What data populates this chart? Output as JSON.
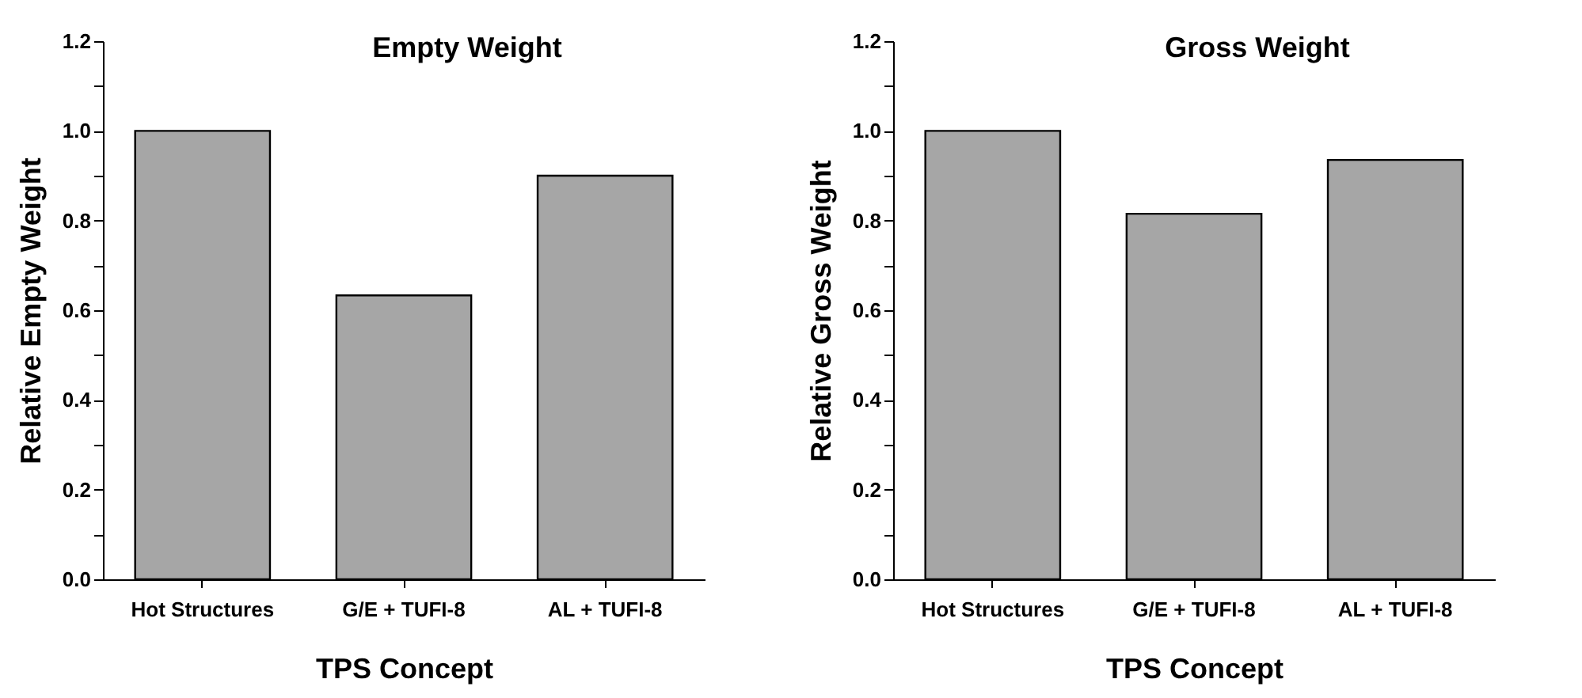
{
  "chart_data": [
    {
      "type": "bar",
      "title": "Empty Weight",
      "xlabel": "TPS Concept",
      "ylabel": "Relative Empty Weight",
      "categories": [
        "Hot Structures",
        "G/E + TUFI-8",
        "AL + TUFI-8"
      ],
      "values": [
        1.0,
        0.633,
        0.9
      ],
      "color": "#a6a6a6",
      "ylim": [
        0,
        1.2
      ],
      "yticks": [
        {
          "value": 0,
          "label": "0.0"
        },
        {
          "value": 0.1,
          "label": null
        },
        {
          "value": 0.2,
          "label": "0.2"
        },
        {
          "value": 0.3,
          "label": null
        },
        {
          "value": 0.4,
          "label": "0.4"
        },
        {
          "value": 0.5,
          "label": null
        },
        {
          "value": 0.6,
          "label": "0.6"
        },
        {
          "value": 0.7,
          "label": null
        },
        {
          "value": 0.8,
          "label": "0.8"
        },
        {
          "value": 0.9,
          "label": null
        },
        {
          "value": 1.0,
          "label": "1.0"
        },
        {
          "value": 1.1,
          "label": null
        },
        {
          "value": 1.2,
          "label": "1.2"
        }
      ],
      "grid": false
    },
    {
      "type": "bar",
      "title": "Gross Weight",
      "xlabel": "TPS Concept",
      "ylabel": "Relative Gross Weight",
      "categories": [
        "Hot Structures",
        "G/E + TUFI-8",
        "AL + TUFI-8"
      ],
      "values": [
        1.0,
        0.815,
        0.935
      ],
      "color": "#a6a6a6",
      "ylim": [
        0,
        1.2
      ],
      "yticks": [
        {
          "value": 0,
          "label": "0.0"
        },
        {
          "value": 0.1,
          "label": null
        },
        {
          "value": 0.2,
          "label": "0.2"
        },
        {
          "value": 0.3,
          "label": null
        },
        {
          "value": 0.4,
          "label": "0.4"
        },
        {
          "value": 0.5,
          "label": null
        },
        {
          "value": 0.6,
          "label": "0.6"
        },
        {
          "value": 0.7,
          "label": null
        },
        {
          "value": 0.8,
          "label": "0.8"
        },
        {
          "value": 0.9,
          "label": null
        },
        {
          "value": 1.0,
          "label": "1.0"
        },
        {
          "value": 1.1,
          "label": null
        },
        {
          "value": 1.2,
          "label": "1.2"
        }
      ],
      "grid": false
    }
  ]
}
